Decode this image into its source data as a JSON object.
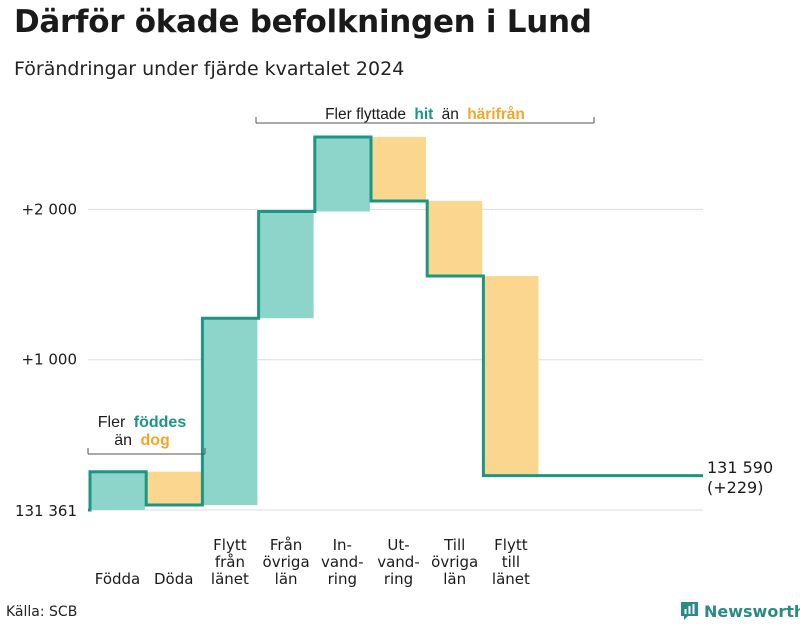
{
  "title": "Därför ökade befolkningen i Lund",
  "subtitle": "Förändringar under fjärde kvartalet 2024",
  "source": "Källa: SCB",
  "brand": "Newsworthy",
  "colors": {
    "increase_fill": "#8dd5cb",
    "decrease_fill": "#fad68e",
    "line": "#1b9683",
    "accent_teal": "#1b9683",
    "accent_orange": "#f4a62a",
    "grid": "#dddddd"
  },
  "annotations": {
    "migration": {
      "prefix": "Fler flyttade",
      "word1": "hit",
      "middle": "än",
      "word2": "härifrån"
    },
    "births": {
      "line1_prefix": "Fler",
      "line1_word": "föddes",
      "line2_prefix": "än",
      "line2_word": "dog"
    }
  },
  "chart_data": {
    "type": "waterfall",
    "title": "Därför ökade befolkningen i Lund",
    "subtitle": "Förändringar under fjärde kvartalet 2024",
    "baseline": 131361,
    "baseline_label": "131 361",
    "end_value": 131590,
    "end_label": "131 590",
    "end_change_label": "(+229)",
    "y_ticks": [
      {
        "value": 1000,
        "label": "+1 000"
      },
      {
        "value": 2000,
        "label": "+2 000"
      }
    ],
    "ylim": [
      0,
      2500
    ],
    "grid": true,
    "steps": [
      {
        "label": [
          "Födda"
        ],
        "change": 255,
        "direction": "increase"
      },
      {
        "label": [
          "Döda"
        ],
        "change": -222,
        "direction": "decrease"
      },
      {
        "label": [
          "Flytt",
          "från",
          "länet"
        ],
        "change": 1243,
        "direction": "increase"
      },
      {
        "label": [
          "Från",
          "övriga",
          "län"
        ],
        "change": 710,
        "direction": "increase"
      },
      {
        "label": [
          "In-",
          "vand-",
          "ring"
        ],
        "change": 496,
        "direction": "increase"
      },
      {
        "label": [
          "Ut-",
          "vand-",
          "ring"
        ],
        "change": -426,
        "direction": "decrease"
      },
      {
        "label": [
          "Till",
          "övriga",
          "län"
        ],
        "change": -499,
        "direction": "decrease"
      },
      {
        "label": [
          "Flytt",
          "till",
          "länet"
        ],
        "change": -1328,
        "direction": "decrease"
      }
    ]
  }
}
